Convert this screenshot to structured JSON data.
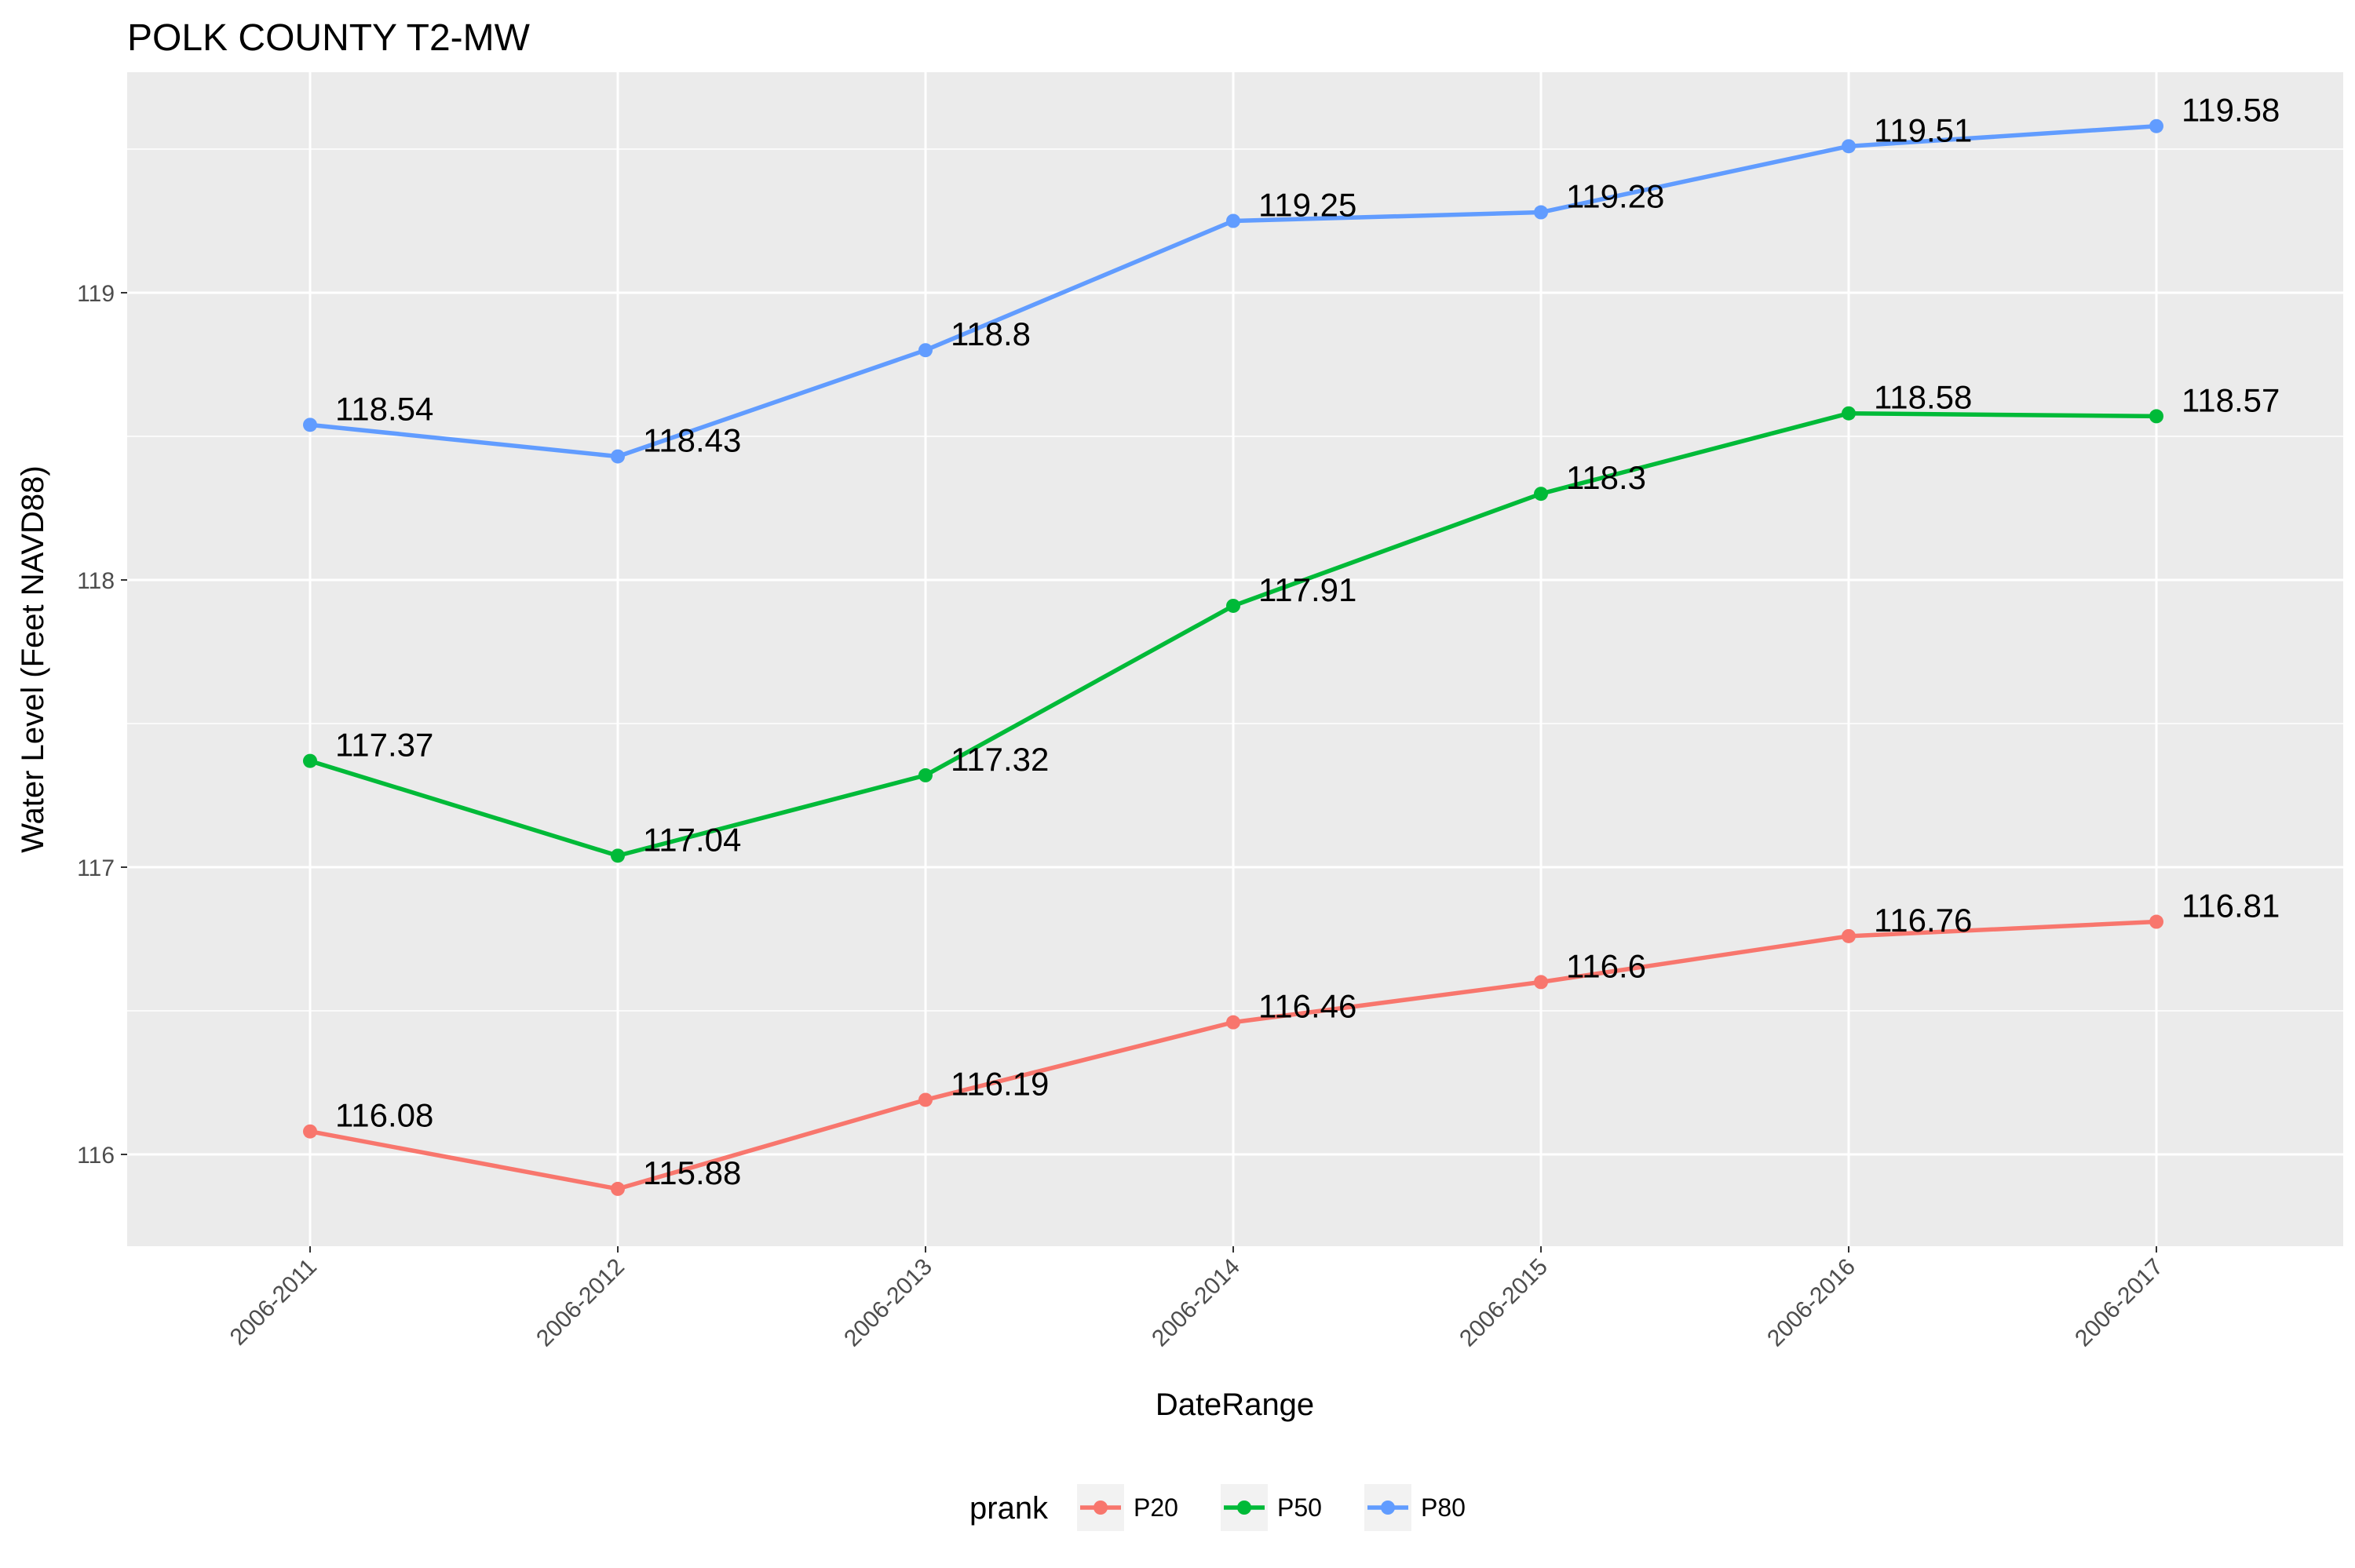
{
  "chart_data": {
    "type": "line",
    "title": "POLK COUNTY T2-MW",
    "xlabel": "DateRange",
    "ylabel": "Water Level (Feet NAVD88)",
    "categories": [
      "2006-2011",
      "2006-2012",
      "2006-2013",
      "2006-2014",
      "2006-2015",
      "2006-2016",
      "2006-2017"
    ],
    "yticks": [
      116,
      117,
      118,
      119
    ],
    "ylim": [
      115.7,
      119.7
    ],
    "grid": true,
    "legend": {
      "title": "prank",
      "position": "bottom"
    },
    "series": [
      {
        "name": "P20",
        "color": "#f8766d",
        "values": [
          116.08,
          115.88,
          116.19,
          116.46,
          116.6,
          116.76,
          116.81
        ]
      },
      {
        "name": "P50",
        "color": "#00ba38",
        "values": [
          117.37,
          117.04,
          117.32,
          117.91,
          118.3,
          118.58,
          118.57
        ]
      },
      {
        "name": "P80",
        "color": "#619cff",
        "values": [
          118.54,
          118.43,
          118.8,
          119.25,
          119.28,
          119.51,
          119.58
        ]
      }
    ]
  }
}
